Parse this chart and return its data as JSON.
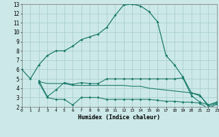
{
  "xlabel": "Humidex (Indice chaleur)",
  "x_ticks": [
    0,
    1,
    2,
    3,
    4,
    5,
    6,
    7,
    8,
    9,
    10,
    11,
    12,
    13,
    14,
    15,
    16,
    17,
    18,
    19,
    20,
    21,
    22,
    23
  ],
  "ylim": [
    2,
    13
  ],
  "xlim": [
    0,
    23
  ],
  "yticks": [
    2,
    3,
    4,
    5,
    6,
    7,
    8,
    9,
    10,
    11,
    12,
    13
  ],
  "bg_color": "#cce8e8",
  "grid_color": "#aad0d0",
  "line_color": "#1a7a6a",
  "line1_x": [
    0,
    1,
    2,
    3,
    4,
    5,
    6,
    7,
    8,
    9,
    10,
    11,
    12,
    13,
    14,
    15,
    16,
    17,
    18,
    19,
    20,
    21,
    22,
    23
  ],
  "line1_y": [
    6.0,
    5.0,
    6.5,
    7.5,
    8.0,
    8.0,
    8.5,
    9.2,
    9.5,
    9.8,
    10.5,
    11.8,
    12.9,
    13.0,
    12.8,
    12.2,
    11.1,
    7.5,
    6.5,
    5.2,
    3.5,
    3.2,
    2.2,
    2.5
  ],
  "line2_x": [
    2,
    3,
    4,
    5,
    6,
    7,
    8,
    9,
    10,
    11,
    12,
    13,
    14,
    15,
    16,
    17,
    18,
    19,
    20,
    21,
    22,
    23
  ],
  "line2_y": [
    4.8,
    3.1,
    3.8,
    4.6,
    4.4,
    4.6,
    4.5,
    4.5,
    5.0,
    5.0,
    5.0,
    5.0,
    5.0,
    5.0,
    5.0,
    5.0,
    5.0,
    5.1,
    3.2,
    2.5,
    2.2,
    2.5
  ],
  "line3_x": [
    2,
    3,
    4,
    5,
    6,
    7,
    8,
    9,
    10,
    11,
    12,
    13,
    14,
    15,
    16,
    17,
    18,
    19,
    20,
    21,
    22,
    23
  ],
  "line3_y": [
    4.7,
    4.5,
    4.5,
    4.5,
    4.3,
    4.3,
    4.3,
    4.3,
    4.3,
    4.3,
    4.3,
    4.2,
    4.2,
    4.0,
    3.9,
    3.8,
    3.7,
    3.6,
    3.5,
    3.3,
    2.0,
    2.4
  ],
  "line4_x": [
    2,
    3,
    4,
    5,
    6,
    7,
    8,
    9,
    10,
    11,
    12,
    13,
    14,
    15,
    16,
    17,
    18,
    19,
    20,
    21,
    22,
    23
  ],
  "line4_y": [
    4.6,
    3.0,
    2.8,
    2.8,
    2.2,
    3.0,
    3.0,
    3.0,
    2.8,
    2.8,
    2.8,
    2.8,
    2.8,
    2.8,
    2.7,
    2.6,
    2.6,
    2.5,
    2.5,
    2.4,
    1.8,
    2.3
  ]
}
